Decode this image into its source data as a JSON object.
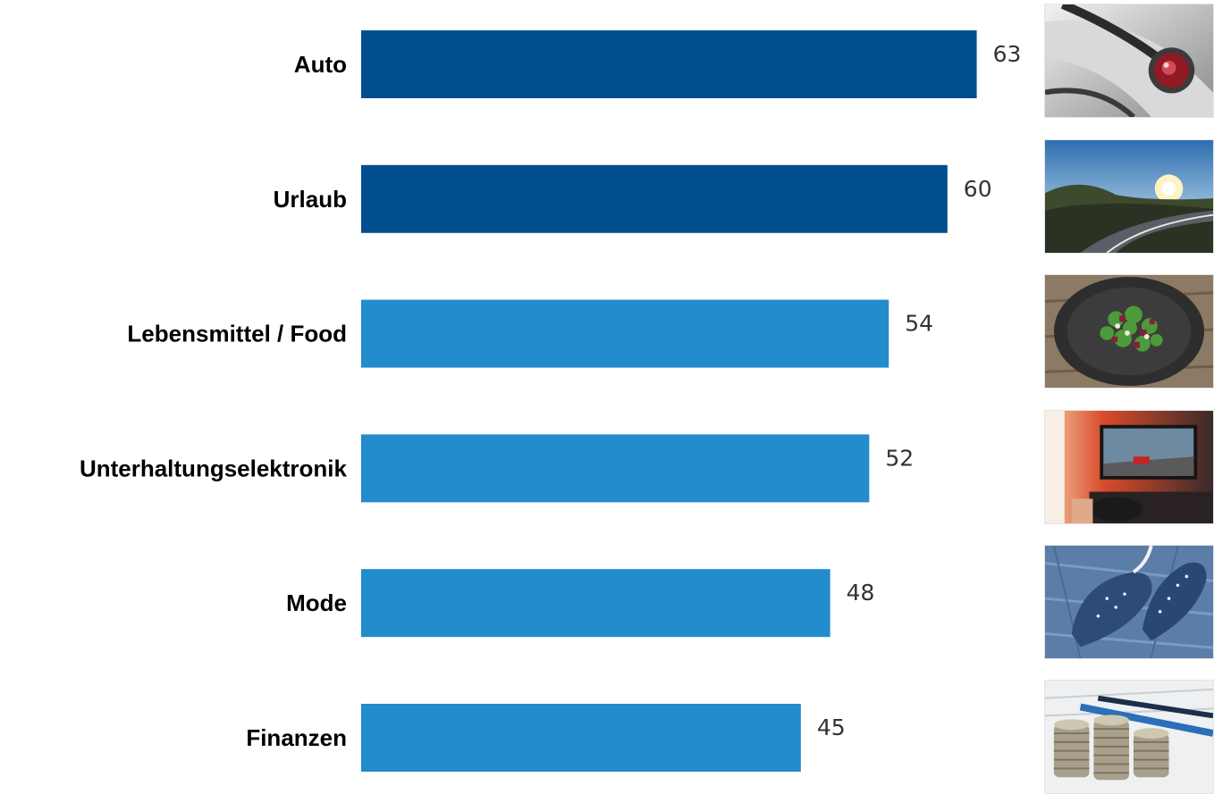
{
  "chart_data": {
    "type": "bar",
    "orientation": "horizontal",
    "categories": [
      "Auto",
      "Urlaub",
      "Lebensmittel / Food",
      "Unterhaltungselektronik",
      "Mode",
      "Finanzen"
    ],
    "values": [
      63,
      60,
      54,
      52,
      48,
      45
    ],
    "bar_colors": [
      "#004e8f",
      "#004e8f",
      "#228ccc",
      "#228ccc",
      "#228ccc",
      "#228ccc"
    ],
    "title": "",
    "xlabel": "",
    "ylabel": "",
    "grid": false,
    "legend": "none"
  },
  "thumbnails": [
    {
      "icon": "car-taillight-photo"
    },
    {
      "icon": "road-sunset-photo"
    },
    {
      "icon": "salad-plate-photo"
    },
    {
      "icon": "gaming-tv-photo"
    },
    {
      "icon": "denim-shoes-photo"
    },
    {
      "icon": "coins-pens-photo"
    }
  ]
}
